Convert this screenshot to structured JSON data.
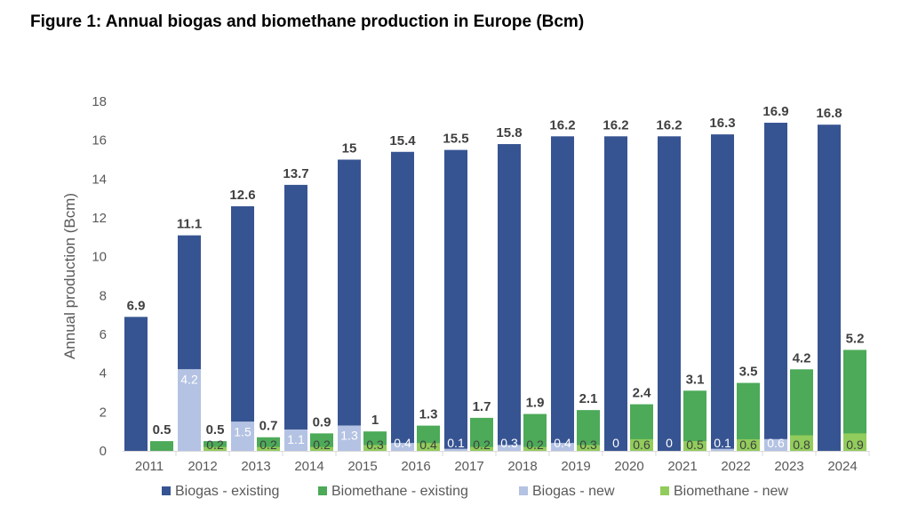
{
  "title": "Figure 1: Annual biogas and biomethane production in Europe (Bcm)",
  "chart_data": {
    "type": "bar",
    "stacked": true,
    "title": "Figure 1: Annual biogas and biomethane production in Europe (Bcm)",
    "xlabel": "",
    "ylabel": "Annual production (Bcm)",
    "ylim": [
      0,
      18
    ],
    "yticks": [
      0,
      2,
      4,
      6,
      8,
      10,
      12,
      14,
      16,
      18
    ],
    "grid": false,
    "legend_position": "bottom",
    "categories": [
      "2011",
      "2012",
      "2013",
      "2014",
      "2015",
      "2016",
      "2017",
      "2018",
      "2019",
      "2020",
      "2021",
      "2022",
      "2023",
      "2024"
    ],
    "biogas_total": [
      6.9,
      11.1,
      12.6,
      13.7,
      15,
      15.4,
      15.5,
      15.8,
      16.2,
      16.2,
      16.2,
      16.3,
      16.9,
      16.8
    ],
    "biomethane_total": [
      0.5,
      0.5,
      0.7,
      0.9,
      1,
      1.3,
      1.7,
      1.9,
      2.1,
      2.4,
      3.1,
      3.5,
      4.2,
      5.2
    ],
    "series": [
      {
        "name": "Biogas - existing",
        "group": "biogas",
        "color": "#375492",
        "values": [
          6.9,
          6.9,
          11.1,
          12.6,
          13.7,
          15.0,
          15.4,
          15.5,
          15.8,
          16.2,
          16.2,
          16.2,
          16.3,
          16.8
        ]
      },
      {
        "name": "Biogas - new",
        "group": "biogas",
        "color": "#b4c3e3",
        "values": [
          null,
          4.2,
          1.5,
          1.1,
          1.3,
          0.4,
          0.1,
          0.3,
          0.4,
          0,
          0,
          0.1,
          0.6,
          null
        ]
      },
      {
        "name": "Biomethane - existing",
        "group": "biomethane",
        "color": "#4caa58",
        "values": [
          0.5,
          0.3,
          0.5,
          0.7,
          0.7,
          0.9,
          1.5,
          1.7,
          1.8,
          1.8,
          2.6,
          2.9,
          3.4,
          4.3
        ]
      },
      {
        "name": "Biomethane - new",
        "group": "biomethane",
        "color": "#92cc5c",
        "values": [
          null,
          0.2,
          0.2,
          0.2,
          0.3,
          0.4,
          0.2,
          0.2,
          0.3,
          0.6,
          0.5,
          0.6,
          0.8,
          0.9
        ]
      }
    ],
    "legend": [
      "Biogas - existing",
      "Biomethane - existing",
      "Biogas - new",
      "Biomethane - new"
    ]
  }
}
